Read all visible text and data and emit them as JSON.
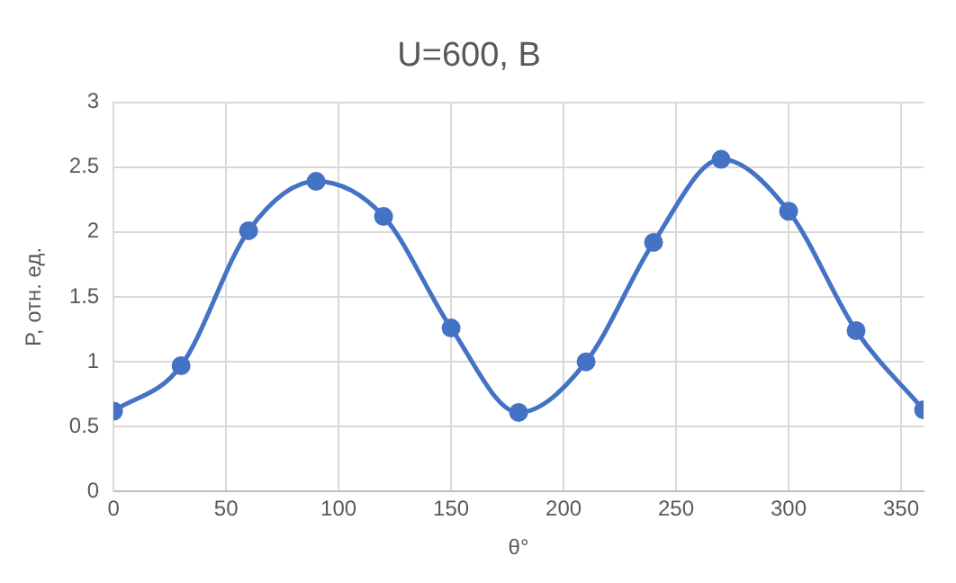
{
  "chart_data": {
    "type": "line",
    "title": "U=600, В",
    "xlabel": "θ°",
    "ylabel": "P, отн. ед.",
    "x": [
      0,
      30,
      60,
      90,
      120,
      150,
      180,
      210,
      240,
      270,
      300,
      330,
      360
    ],
    "series": [
      {
        "color": "#4472c4",
        "values": [
          0.62,
          0.97,
          2.01,
          2.39,
          2.12,
          1.26,
          0.61,
          1.0,
          1.92,
          2.56,
          2.16,
          1.24,
          0.63
        ]
      }
    ],
    "xlim": [
      0,
      360
    ],
    "xticks": [
      0,
      50,
      100,
      150,
      200,
      250,
      300,
      350
    ],
    "ylim": [
      0,
      3
    ],
    "yticks": [
      0,
      0.5,
      1,
      1.5,
      2,
      2.5,
      3
    ],
    "grid": true,
    "marker": "circle",
    "line_style": "solid",
    "legend": false
  }
}
